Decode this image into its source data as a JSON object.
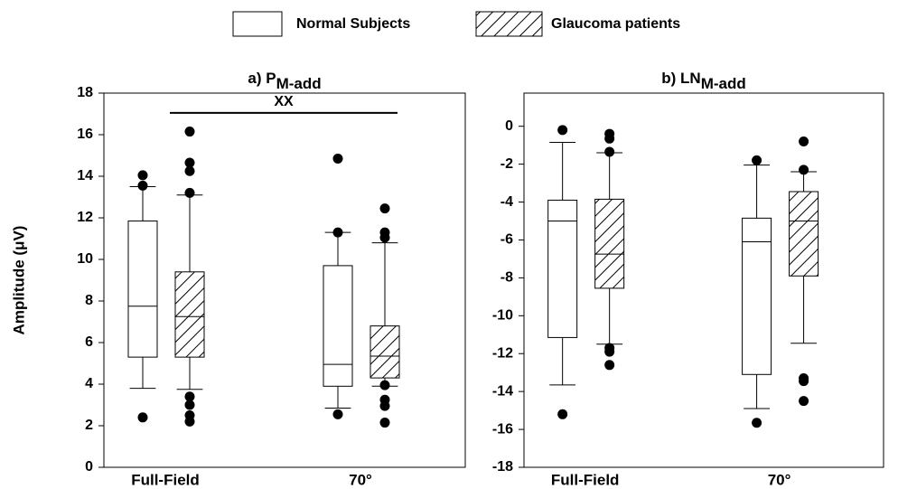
{
  "legend": [
    {
      "name": "Normal Subjects",
      "pattern": "plain"
    },
    {
      "name": "Glaucoma patients",
      "pattern": "hatch"
    }
  ],
  "chart_data": [
    {
      "type": "box",
      "title": "a) P",
      "title_subscript": "M-add",
      "y_label": "Amplitude (μV)",
      "annotation": "XX",
      "categories": [
        "Full-Field",
        "70°"
      ],
      "ylim": [
        0,
        18
      ],
      "yticks": [
        0,
        2,
        4,
        6,
        8,
        10,
        12,
        14,
        16,
        18
      ],
      "series": [
        {
          "pattern": "plain",
          "boxes": [
            {
              "whisker_low": 3.8,
              "q1": 5.3,
              "median": 7.75,
              "q3": 11.85,
              "whisker_high": 13.5,
              "outliers": [
                2.4,
                13.55,
                14.05
              ]
            },
            {
              "whisker_low": 2.85,
              "q1": 3.9,
              "median": 4.95,
              "q3": 9.7,
              "whisker_high": 11.3,
              "outliers": [
                2.55,
                11.3,
                14.85
              ]
            }
          ]
        },
        {
          "pattern": "hatch",
          "boxes": [
            {
              "whisker_low": 3.75,
              "q1": 5.3,
              "median": 7.25,
              "q3": 9.4,
              "whisker_high": 13.1,
              "outliers": [
                2.2,
                2.5,
                3.0,
                3.4,
                13.2,
                14.25,
                14.65,
                16.15
              ]
            },
            {
              "whisker_low": 3.9,
              "q1": 4.3,
              "median": 5.35,
              "q3": 6.8,
              "whisker_high": 10.8,
              "outliers": [
                2.15,
                2.95,
                3.25,
                3.95,
                11.05,
                11.3,
                12.45
              ]
            }
          ]
        }
      ]
    },
    {
      "type": "box",
      "title": "b) LN",
      "title_subscript": "M-add",
      "categories": [
        "Full-Field",
        "70°"
      ],
      "ylim": [
        -18,
        1.75
      ],
      "yticks": [
        -18,
        -16,
        -14,
        -12,
        -10,
        -8,
        -6,
        -4,
        -2,
        0
      ],
      "series": [
        {
          "pattern": "plain",
          "boxes": [
            {
              "whisker_low": -13.65,
              "q1": -11.15,
              "median": -5.0,
              "q3": -3.9,
              "whisker_high": -0.85,
              "outliers": [
                -15.2,
                -0.2
              ]
            },
            {
              "whisker_low": -14.9,
              "q1": -13.1,
              "median": -6.1,
              "q3": -4.85,
              "whisker_high": -2.05,
              "outliers": [
                -15.65,
                -1.8
              ]
            }
          ]
        },
        {
          "pattern": "hatch",
          "boxes": [
            {
              "whisker_low": -11.5,
              "q1": -8.55,
              "median": -6.75,
              "q3": -3.85,
              "whisker_high": -1.4,
              "outliers": [
                -12.6,
                -11.9,
                -11.7,
                -1.35,
                -0.65,
                -0.4
              ]
            },
            {
              "whisker_low": -11.45,
              "q1": -7.9,
              "median": -5.0,
              "q3": -3.45,
              "whisker_high": -2.4,
              "outliers": [
                -14.5,
                -13.45,
                -13.3,
                -2.3,
                -0.8
              ]
            }
          ]
        }
      ]
    }
  ]
}
